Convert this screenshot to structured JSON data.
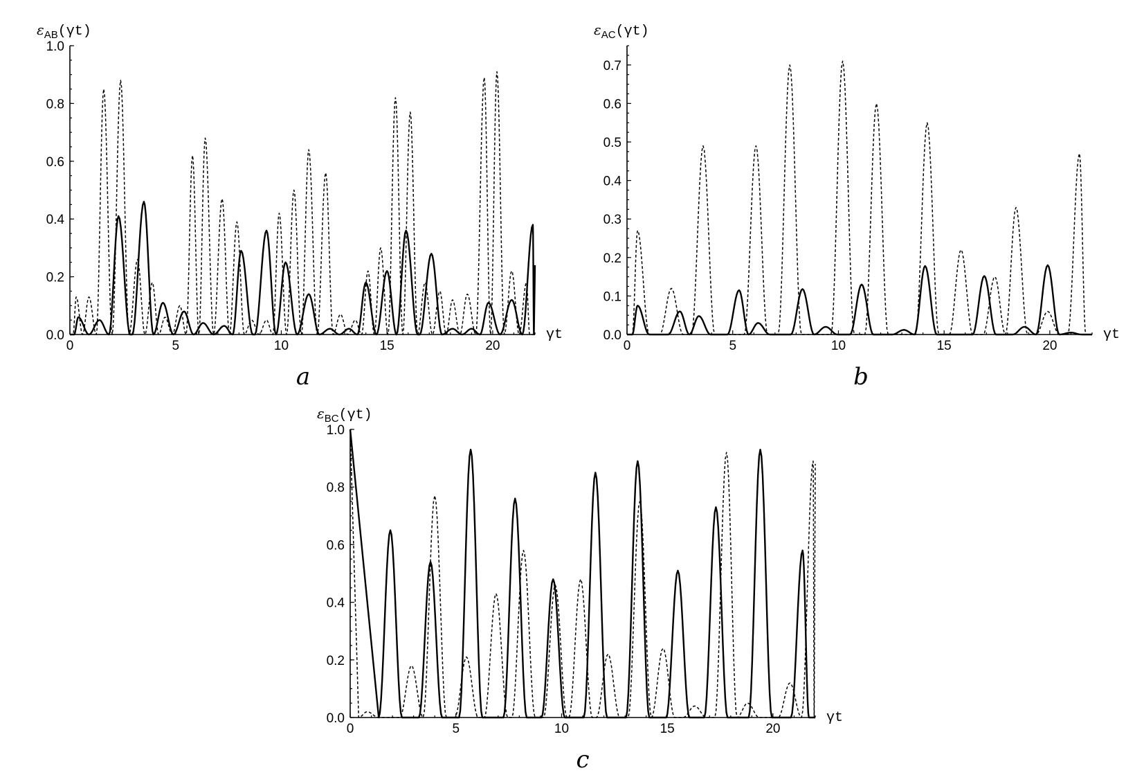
{
  "chart_data": [
    {
      "panel": "a",
      "type": "line",
      "ylabel": {
        "main": "ε",
        "sub": "AB",
        "arg": "(γt)"
      },
      "xlabel": "γt",
      "xlim": [
        0,
        22
      ],
      "ylim": [
        0,
        1.0
      ],
      "xticks": [
        0,
        5,
        10,
        15,
        20
      ],
      "yticks": [
        "0.0",
        "0.2",
        "0.4",
        "0.6",
        "0.8",
        "1.0"
      ],
      "grid": false,
      "series": [
        {
          "style": "solid",
          "peaks": [
            [
              0.4,
              0.06
            ],
            [
              1.4,
              0.05
            ],
            [
              2.3,
              0.41
            ],
            [
              3.5,
              0.46
            ],
            [
              4.4,
              0.11
            ],
            [
              5.4,
              0.08
            ],
            [
              6.3,
              0.04
            ],
            [
              7.3,
              0.03
            ],
            [
              8.1,
              0.29
            ],
            [
              9.3,
              0.36
            ],
            [
              10.2,
              0.25
            ],
            [
              11.3,
              0.14
            ],
            [
              12.3,
              0.02
            ],
            [
              13.2,
              0.02
            ],
            [
              14.0,
              0.18
            ],
            [
              15.0,
              0.22
            ],
            [
              15.9,
              0.36
            ],
            [
              17.1,
              0.28
            ],
            [
              18.1,
              0.02
            ],
            [
              19.0,
              0.02
            ],
            [
              19.8,
              0.11
            ],
            [
              20.9,
              0.12
            ],
            [
              21.9,
              0.38
            ]
          ],
          "end": [
            22.0,
            0.24
          ]
        },
        {
          "style": "dashed",
          "peaks": [
            [
              0.3,
              0.13
            ],
            [
              0.9,
              0.13
            ],
            [
              1.6,
              0.85
            ],
            [
              2.4,
              0.88
            ],
            [
              3.2,
              0.26
            ],
            [
              3.9,
              0.18
            ],
            [
              4.5,
              0.06
            ],
            [
              5.2,
              0.1
            ],
            [
              5.8,
              0.62
            ],
            [
              6.4,
              0.68
            ],
            [
              7.2,
              0.47
            ],
            [
              7.9,
              0.39
            ],
            [
              8.6,
              0.05
            ],
            [
              9.3,
              0.05
            ],
            [
              9.9,
              0.42
            ],
            [
              10.6,
              0.5
            ],
            [
              11.3,
              0.64
            ],
            [
              12.1,
              0.56
            ],
            [
              12.8,
              0.07
            ],
            [
              13.5,
              0.05
            ],
            [
              14.1,
              0.22
            ],
            [
              14.7,
              0.3
            ],
            [
              15.4,
              0.82
            ],
            [
              16.1,
              0.77
            ],
            [
              16.8,
              0.18
            ],
            [
              17.5,
              0.15
            ],
            [
              18.1,
              0.12
            ],
            [
              18.8,
              0.14
            ],
            [
              19.6,
              0.89
            ],
            [
              20.2,
              0.91
            ],
            [
              20.9,
              0.22
            ],
            [
              21.6,
              0.18
            ]
          ],
          "end": [
            21.9,
            0.0
          ]
        }
      ]
    },
    {
      "panel": "b",
      "type": "line",
      "ylabel": {
        "main": "ε",
        "sub": "AC",
        "arg": "(γt)"
      },
      "xlabel": "γt",
      "xlim": [
        0,
        22
      ],
      "ylim": [
        0,
        0.75
      ],
      "xticks": [
        0,
        5,
        10,
        15,
        20
      ],
      "yticks": [
        "0.0",
        "0.1",
        "0.2",
        "0.3",
        "0.4",
        "0.5",
        "0.6",
        "0.7"
      ],
      "grid": false,
      "series": [
        {
          "style": "solid",
          "peaks": [
            [
              0.5,
              0.075
            ],
            [
              2.5,
              0.06
            ],
            [
              3.4,
              0.048
            ],
            [
              5.3,
              0.115
            ],
            [
              6.2,
              0.03
            ],
            [
              8.3,
              0.118
            ],
            [
              9.4,
              0.02
            ],
            [
              11.1,
              0.13
            ],
            [
              13.1,
              0.012
            ],
            [
              14.1,
              0.178
            ],
            [
              16.9,
              0.152
            ],
            [
              18.8,
              0.02
            ],
            [
              19.9,
              0.18
            ],
            [
              21.0,
              0.005
            ]
          ],
          "end": [
            22.0,
            0.0
          ]
        },
        {
          "style": "dashed",
          "peaks": [
            [
              0.5,
              0.27
            ],
            [
              2.1,
              0.12
            ],
            [
              3.6,
              0.49
            ],
            [
              6.1,
              0.49
            ],
            [
              7.7,
              0.7
            ],
            [
              10.2,
              0.71
            ],
            [
              11.8,
              0.6
            ],
            [
              14.2,
              0.55
            ],
            [
              15.8,
              0.22
            ],
            [
              17.4,
              0.15
            ],
            [
              18.4,
              0.33
            ],
            [
              19.9,
              0.06
            ],
            [
              21.4,
              0.47
            ]
          ],
          "end": [
            22.0,
            0.0
          ]
        }
      ]
    },
    {
      "panel": "c",
      "type": "line",
      "ylabel": {
        "main": "ε",
        "sub": "BC",
        "arg": "(γt)"
      },
      "xlabel": "γt",
      "xlim": [
        0,
        22
      ],
      "ylim": [
        0,
        1.0
      ],
      "xticks": [
        0,
        5,
        10,
        15,
        20
      ],
      "yticks": [
        "0.0",
        "0.2",
        "0.4",
        "0.6",
        "0.8",
        "1.0"
      ],
      "grid": false,
      "series": [
        {
          "style": "solid",
          "start": [
            0.0,
            1.0
          ],
          "peaks": [
            [
              1.9,
              0.65
            ],
            [
              3.8,
              0.54
            ],
            [
              5.7,
              0.93
            ],
            [
              7.8,
              0.76
            ],
            [
              9.6,
              0.48
            ],
            [
              11.6,
              0.85
            ],
            [
              13.6,
              0.89
            ],
            [
              15.5,
              0.51
            ],
            [
              17.3,
              0.73
            ],
            [
              19.4,
              0.93
            ],
            [
              21.4,
              0.58
            ]
          ],
          "end": [
            22.0,
            0.0
          ]
        },
        {
          "style": "dashed",
          "start": [
            0.0,
            1.0
          ],
          "peaks": [
            [
              0.8,
              0.02
            ],
            [
              2.9,
              0.18
            ],
            [
              4.0,
              0.77
            ],
            [
              5.5,
              0.21
            ],
            [
              6.9,
              0.43
            ],
            [
              8.2,
              0.58
            ],
            [
              9.7,
              0.46
            ],
            [
              10.9,
              0.48
            ],
            [
              12.2,
              0.22
            ],
            [
              13.7,
              0.75
            ],
            [
              14.8,
              0.24
            ],
            [
              16.3,
              0.04
            ],
            [
              17.8,
              0.92
            ],
            [
              18.8,
              0.05
            ],
            [
              20.8,
              0.12
            ],
            [
              21.9,
              0.89
            ]
          ],
          "end": [
            22.0,
            0.88
          ]
        }
      ]
    }
  ]
}
